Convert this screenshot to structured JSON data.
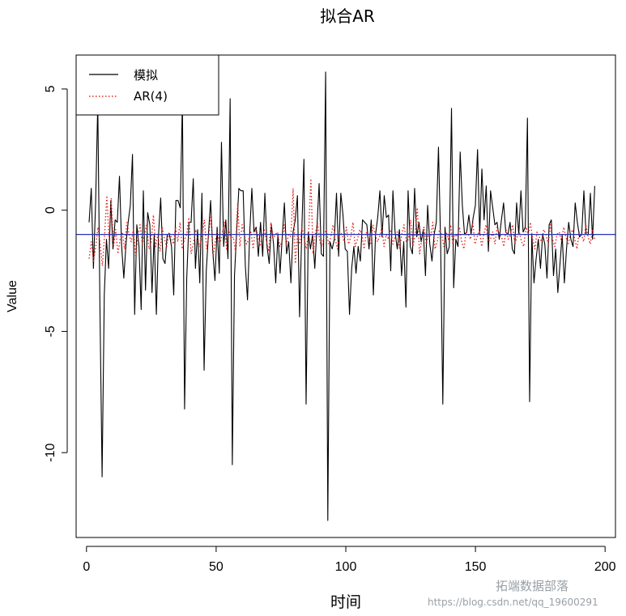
{
  "chart_data": {
    "type": "line",
    "title": "拟合AR",
    "xlabel": "时间",
    "ylabel": "Value",
    "xlim": [
      -4,
      204
    ],
    "ylim": [
      -13.5,
      6.4
    ],
    "xticks": [
      0,
      50,
      100,
      150,
      200
    ],
    "yticks": [
      -10,
      -5,
      0,
      5
    ],
    "legend_position": "top-left",
    "grid": false,
    "hline": {
      "y": -1.0,
      "color": "#2233bb"
    },
    "series": [
      {
        "name": "模拟",
        "color": "#000000",
        "style": "solid",
        "x_start": 1,
        "values": [
          -0.5,
          0.9,
          -2.4,
          0.3,
          4.4,
          -4.0,
          -11.0,
          -3.5,
          -1.2,
          -2.4,
          0.4,
          -1.6,
          -0.4,
          -0.5,
          1.4,
          -1.5,
          -2.8,
          -1.4,
          -0.5,
          0.2,
          2.3,
          -4.3,
          -0.6,
          -1.5,
          -4.1,
          0.8,
          -3.3,
          -0.1,
          -0.6,
          -3.4,
          -1.0,
          -4.3,
          -1.0,
          0.5,
          -2.0,
          -2.2,
          -1.0,
          -1.0,
          -1.5,
          -3.5,
          0.4,
          0.4,
          0.1,
          4.5,
          -8.2,
          -2.8,
          -0.5,
          -0.5,
          1.3,
          -2.4,
          -0.8,
          -3.0,
          0.7,
          -6.6,
          -2.5,
          -1.0,
          0.4,
          -1.7,
          -2.9,
          -0.7,
          -2.6,
          2.8,
          -1.5,
          -0.4,
          -2.0,
          4.6,
          -10.5,
          -2.7,
          -0.9,
          0.9,
          0.8,
          0.8,
          -2.3,
          -3.7,
          -1.0,
          0.9,
          -0.9,
          -0.7,
          -1.9,
          -0.5,
          -1.9,
          0.7,
          -1.5,
          -2.2,
          -0.6,
          -1.4,
          -3.0,
          -1.0,
          -2.6,
          -1.1,
          0.3,
          -1.8,
          -1.3,
          -3.0,
          -0.9,
          -0.4,
          0.6,
          -4.4,
          -0.9,
          2.1,
          -8.0,
          -0.9,
          -1.6,
          -1.0,
          -2.4,
          -0.7,
          1.1,
          -1.8,
          -1.9,
          5.7,
          -12.8,
          -1.3,
          -1.6,
          -1.2,
          0.7,
          -1.9,
          0.7,
          -0.2,
          -1.6,
          -1.7,
          -4.3,
          -2.4,
          -1.5,
          -2.6,
          -1.5,
          -2.1,
          -0.4,
          -0.5,
          -0.6,
          -1.6,
          -0.4,
          -3.5,
          -1.0,
          -0.3,
          0.8,
          -1.1,
          0.6,
          -0.3,
          -0.2,
          -2.5,
          0.8,
          -0.9,
          -1.6,
          -0.8,
          -2.7,
          -1.3,
          -4.0,
          0.8,
          -1.5,
          -1.8,
          0.9,
          -1.1,
          -0.5,
          -1.3,
          -0.8,
          -2.7,
          0.2,
          -1.4,
          -2.1,
          -1.0,
          -0.5,
          2.6,
          -1.4,
          -8.0,
          -0.7,
          -1.8,
          -1.5,
          4.2,
          -3.2,
          -1.2,
          -1.5,
          2.4,
          0.2,
          -1.0,
          -0.9,
          -0.2,
          -1.0,
          -0.3,
          0.2,
          2.5,
          -1.0,
          1.7,
          -0.4,
          1.0,
          -1.7,
          0.8,
          0.1,
          -0.6,
          -0.5,
          -1.2,
          -0.4,
          0.3,
          -0.9,
          -1.0,
          -0.5,
          -1.6,
          -1.8,
          0.3,
          -1.0,
          0.8,
          -0.9,
          -0.7,
          3.8,
          -7.9,
          -1.0,
          -3.0,
          -2.0,
          -1.2,
          -2.4,
          -1.0,
          -1.4,
          -2.8,
          -0.6,
          -0.4,
          -2.7,
          -1.6,
          -3.4,
          -2.2,
          -1.0,
          -3.0,
          -1.6,
          -0.5,
          -1.2,
          -1.5,
          0.3,
          -0.5,
          -1.1,
          -1.0,
          0.8,
          -1.0,
          -1.0,
          0.7,
          -1.2,
          1.0
        ]
      },
      {
        "name": "AR(4)",
        "color": "#e8251d",
        "style": "dotted",
        "x_start": 1,
        "values": [
          -2.0,
          -1.3,
          -2.1,
          -1.5,
          -0.7,
          -1.4,
          -2.3,
          -1.0,
          0.6,
          -1.2,
          0.5,
          -1.5,
          -0.8,
          -1.8,
          -1.2,
          -0.9,
          -1.6,
          -0.5,
          -1.0,
          -1.3,
          -0.8,
          -1.9,
          -1.1,
          -0.6,
          -1.4,
          -1.0,
          -0.6,
          -1.6,
          -1.3,
          -0.2,
          -1.5,
          -1.0,
          -1.7,
          -0.7,
          -1.2,
          -1.5,
          -0.9,
          -1.1,
          -1.4,
          -0.7,
          -1.3,
          -0.5,
          -1.6,
          -1.2,
          -1.0,
          -0.3,
          -1.8,
          -1.4,
          -0.8,
          -1.2,
          -1.5,
          -1.0,
          -0.4,
          -1.6,
          -1.0,
          -0.2,
          -1.9,
          -1.2,
          -0.9,
          -1.4,
          -1.0,
          -0.5,
          -1.6,
          -0.8,
          -1.2,
          -1.1,
          -1.7,
          0.3,
          -1.5,
          -0.6,
          -1.0,
          -1.4,
          -1.2,
          -0.9,
          -1.6,
          -0.7,
          -1.0,
          -1.5,
          -1.1,
          -0.8,
          -1.3,
          -1.7,
          -0.5,
          -1.2,
          -1.0,
          -0.9,
          -1.5,
          -1.3,
          -0.6,
          -1.4,
          -1.0,
          -1.1,
          0.9,
          -2.2,
          -1.0,
          -1.4,
          -0.7,
          -1.2,
          -1.6,
          -0.9,
          1.3,
          -1.8,
          -1.0,
          -0.5,
          -1.3,
          -1.5,
          -1.0,
          -0.8,
          -1.4,
          -1.1,
          -0.6,
          -1.2,
          -1.6,
          -0.9,
          -1.0,
          -1.3,
          -0.7,
          -1.4,
          -1.1,
          -0.5,
          -1.5,
          -1.2,
          -0.8,
          -1.0,
          -1.6,
          -0.9,
          -1.2,
          -1.4,
          -0.6,
          -1.0,
          -1.3,
          -1.1,
          -0.7,
          -1.5,
          -1.0,
          -1.2,
          -0.8,
          -1.4,
          -1.1,
          -0.9,
          -1.6,
          -1.0,
          -0.6,
          -1.3,
          -1.2,
          -0.4,
          -1.5,
          -1.0,
          0.1,
          -1.8,
          -1.2,
          -0.7,
          -1.4,
          -1.0,
          -1.1,
          -0.5,
          -1.6,
          -1.3,
          -0.8,
          -1.0,
          -1.5,
          -0.9,
          -1.2,
          -0.6,
          -1.4,
          -1.0,
          -1.1,
          -0.7,
          -1.3,
          -1.6,
          -0.9,
          -1.0,
          -1.2,
          -0.5,
          -1.4,
          -1.1,
          -0.8,
          -1.5,
          -1.0,
          -0.6,
          -1.3,
          -1.2,
          -0.9,
          -1.4,
          -0.7,
          -1.0,
          -1.1,
          -1.5,
          -0.8,
          -1.2,
          -1.0,
          -0.6,
          -1.4,
          -1.1,
          -0.9,
          -1.3,
          -1.5,
          -0.7,
          -1.0,
          -0.5,
          -1.2,
          -1.6,
          -0.9,
          -1.1,
          -1.3,
          -0.8,
          -1.0,
          -1.4,
          -0.6,
          -1.2,
          -1.5,
          -1.0,
          -0.9,
          -1.3,
          -0.7,
          -1.1,
          -1.4,
          -1.0,
          -0.8,
          -1.2,
          -1.6,
          -0.9,
          -1.0,
          -1.3,
          -0.6,
          -1.1,
          -1.4,
          -0.8,
          -1.2
        ]
      }
    ]
  },
  "watermark": {
    "text1": "拓端数据部落",
    "text2": "https://blog.csdn.net/qq_19600291"
  }
}
